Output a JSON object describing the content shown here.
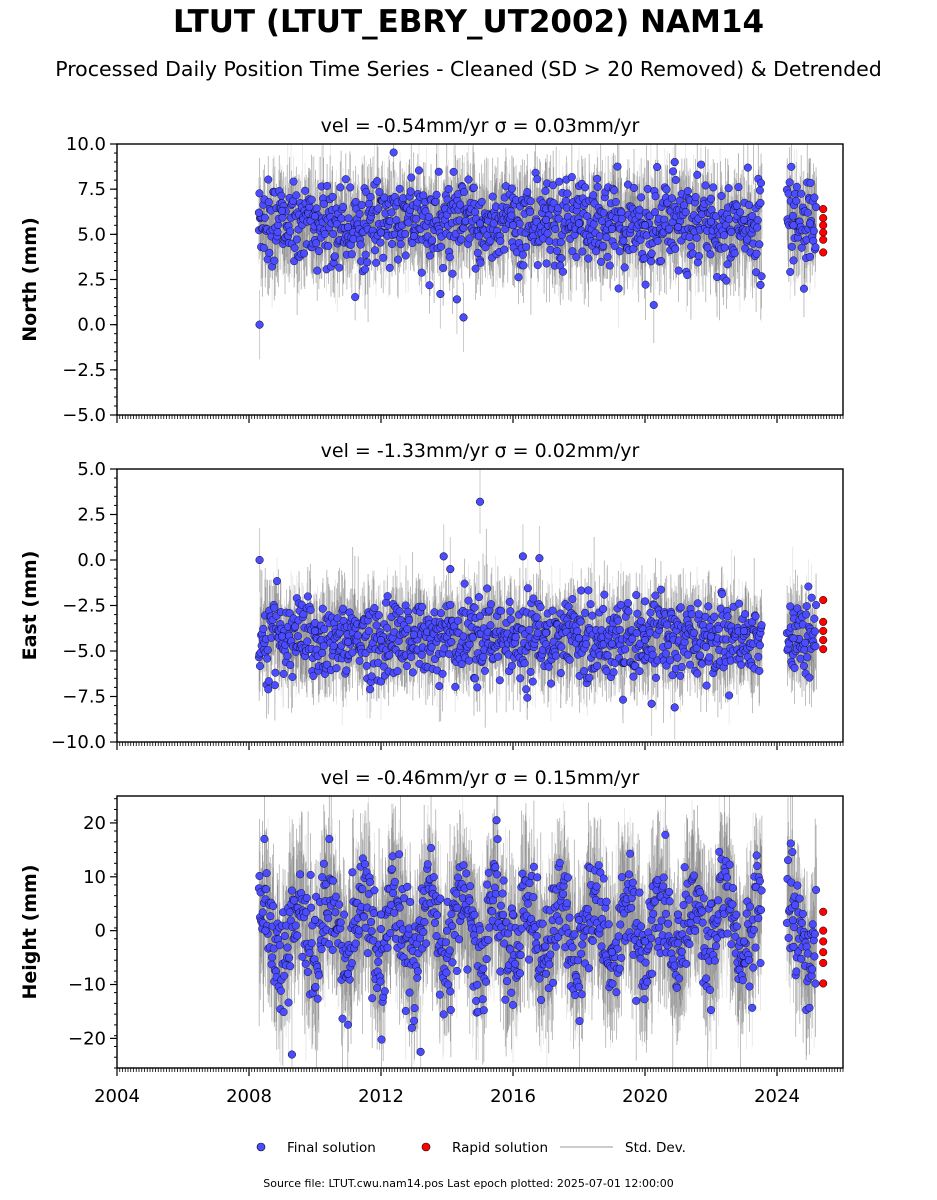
{
  "title": "LTUT (LTUT_EBRY_UT2002) NAM14",
  "subtitle": "Processed Daily Position Time Series - Cleaned (SD > 20 Removed) & Detrended",
  "footer": "Source file: LTUT.cwu.nam14.pos  Last epoch plotted: 2025-07-01 12:00:00",
  "legend": {
    "final": "Final solution",
    "rapid": "Rapid solution",
    "std": "Std. Dev."
  },
  "colors": {
    "final": "#4b4bff",
    "rapid": "#ff0000",
    "std": "#bbbbbb"
  },
  "chart_data": [
    {
      "type": "scatter",
      "component": "North",
      "title": "vel = -0.54mm/yr   σ = 0.03mm/yr",
      "ylabel": "North (mm)",
      "xlim": [
        2004.0,
        2026.0
      ],
      "ylim": [
        -5.0,
        10.0
      ],
      "yticks": [
        -5.0,
        -2.5,
        0.0,
        2.5,
        5.0,
        7.5,
        10.0
      ],
      "ytick_labels": [
        "−5.0",
        "−2.5",
        "0.0",
        "2.5",
        "5.0",
        "7.5",
        "10.0"
      ],
      "xticks": [
        2004,
        2008,
        2012,
        2016,
        2020,
        2024
      ],
      "xtick_labels": [],
      "final_series": [
        {
          "year": 2008.3,
          "value": 6.2
        },
        {
          "year": 2008.32,
          "value": 0.0
        },
        {
          "year": 2009.0,
          "value": 6.3
        },
        {
          "year": 2010.0,
          "value": 6.0
        },
        {
          "year": 2011.0,
          "value": 5.4
        },
        {
          "year": 2012.0,
          "value": 5.1
        },
        {
          "year": 2013.0,
          "value": 4.9
        },
        {
          "year": 2013.8,
          "value": 1.7
        },
        {
          "year": 2014.3,
          "value": 1.4
        },
        {
          "year": 2014.5,
          "value": 0.4
        },
        {
          "year": 2015.0,
          "value": 5.6
        },
        {
          "year": 2016.0,
          "value": 5.5
        },
        {
          "year": 2017.0,
          "value": 5.8
        },
        {
          "year": 2018.0,
          "value": 5.6
        },
        {
          "year": 2019.0,
          "value": 5.3
        },
        {
          "year": 2020.0,
          "value": 5.5
        },
        {
          "year": 2020.9,
          "value": 9.0
        },
        {
          "year": 2021.0,
          "value": 5.4
        },
        {
          "year": 2022.0,
          "value": 5.7
        },
        {
          "year": 2023.0,
          "value": 5.8
        },
        {
          "year": 2023.5,
          "value": 2.2
        },
        {
          "year": 2024.5,
          "value": 5.5
        },
        {
          "year": 2025.0,
          "value": 5.6
        }
      ],
      "final_range": {
        "start": 2008.3,
        "end": 2023.55,
        "start2": 2024.3,
        "end2": 2025.2,
        "mean": 5.6,
        "spread": 1.2
      },
      "rapid_series": [
        {
          "year": 2025.4,
          "value": 6.4
        },
        {
          "year": 2025.4,
          "value": 5.9
        },
        {
          "year": 2025.4,
          "value": 5.5
        },
        {
          "year": 2025.4,
          "value": 5.1
        },
        {
          "year": 2025.4,
          "value": 4.7
        },
        {
          "year": 2025.4,
          "value": 4.0
        }
      ]
    },
    {
      "type": "scatter",
      "component": "East",
      "title": "vel = -1.33mm/yr   σ = 0.02mm/yr",
      "ylabel": "East (mm)",
      "xlim": [
        2004.0,
        2026.0
      ],
      "ylim": [
        -10.0,
        5.0
      ],
      "yticks": [
        -10.0,
        -7.5,
        -5.0,
        -2.5,
        0.0,
        2.5,
        5.0
      ],
      "ytick_labels": [
        "−10.0",
        "−7.5",
        "−5.0",
        "−2.5",
        "0.0",
        "2.5",
        "5.0"
      ],
      "xticks": [
        2004,
        2008,
        2012,
        2016,
        2020,
        2024
      ],
      "xtick_labels": [],
      "final_series": [
        {
          "year": 2008.32,
          "value": 0.0
        },
        {
          "year": 2009.0,
          "value": -4.2
        },
        {
          "year": 2010.0,
          "value": -3.9
        },
        {
          "year": 2011.0,
          "value": -4.5
        },
        {
          "year": 2012.0,
          "value": -4.4
        },
        {
          "year": 2013.0,
          "value": -4.1
        },
        {
          "year": 2013.9,
          "value": 0.2
        },
        {
          "year": 2014.1,
          "value": -0.5
        },
        {
          "year": 2015.0,
          "value": 3.2
        },
        {
          "year": 2016.3,
          "value": 0.2
        },
        {
          "year": 2016.8,
          "value": 0.1
        },
        {
          "year": 2017.0,
          "value": -4.0
        },
        {
          "year": 2018.0,
          "value": -4.3
        },
        {
          "year": 2019.0,
          "value": -4.6
        },
        {
          "year": 2020.0,
          "value": -4.4
        },
        {
          "year": 2020.2,
          "value": -7.9
        },
        {
          "year": 2020.9,
          "value": -8.1
        },
        {
          "year": 2022.0,
          "value": -4.2
        },
        {
          "year": 2023.0,
          "value": -3.9
        },
        {
          "year": 2024.5,
          "value": -4.3
        }
      ],
      "final_range": {
        "start": 2008.3,
        "end": 2023.55,
        "start2": 2024.3,
        "end2": 2025.2,
        "mean": -4.3,
        "spread": 1.1
      },
      "rapid_series": [
        {
          "year": 2025.4,
          "value": -2.2
        },
        {
          "year": 2025.4,
          "value": -3.4
        },
        {
          "year": 2025.4,
          "value": -3.9
        },
        {
          "year": 2025.4,
          "value": -4.4
        },
        {
          "year": 2025.4,
          "value": -4.9
        }
      ]
    },
    {
      "type": "scatter",
      "component": "Height",
      "title": "vel = -0.46mm/yr   σ = 0.15mm/yr",
      "ylabel": "Height (mm)",
      "xlim": [
        2004.0,
        2026.0
      ],
      "ylim": [
        -25.5,
        25.0
      ],
      "yticks": [
        -20,
        -10,
        0,
        10,
        20
      ],
      "ytick_labels": [
        "−20",
        "−10",
        "0",
        "10",
        "20"
      ],
      "xticks": [
        2004,
        2008,
        2012,
        2016,
        2020,
        2024
      ],
      "xtick_labels": [
        "2004",
        "2008",
        "2012",
        "2016",
        "2020",
        "2024"
      ],
      "final_series": [
        {
          "year": 2008.5,
          "value": 0.0
        },
        {
          "year": 2009.3,
          "value": -23.0
        },
        {
          "year": 2010.0,
          "value": 2.0
        },
        {
          "year": 2011.0,
          "value": -8.0
        },
        {
          "year": 2012.0,
          "value": 3.0
        },
        {
          "year": 2013.2,
          "value": -22.5
        },
        {
          "year": 2014.0,
          "value": 0.0
        },
        {
          "year": 2015.5,
          "value": 20.5
        },
        {
          "year": 2016.0,
          "value": 3.0
        },
        {
          "year": 2017.0,
          "value": -8.0
        },
        {
          "year": 2018.0,
          "value": 2.0
        },
        {
          "year": 2019.0,
          "value": -4.0
        },
        {
          "year": 2020.0,
          "value": -2.0
        },
        {
          "year": 2021.0,
          "value": 3.0
        },
        {
          "year": 2022.0,
          "value": 5.0
        },
        {
          "year": 2023.0,
          "value": -2.0
        },
        {
          "year": 2024.5,
          "value": -3.0
        }
      ],
      "final_range": {
        "start": 2008.3,
        "end": 2023.55,
        "start2": 2024.3,
        "end2": 2025.2,
        "mean": 0.0,
        "spread": 6.5
      },
      "rapid_series": [
        {
          "year": 2025.4,
          "value": 3.5
        },
        {
          "year": 2025.4,
          "value": 0.0
        },
        {
          "year": 2025.4,
          "value": -2.0
        },
        {
          "year": 2025.4,
          "value": -4.0
        },
        {
          "year": 2025.4,
          "value": -6.0
        },
        {
          "year": 2025.4,
          "value": -9.8
        }
      ]
    }
  ]
}
